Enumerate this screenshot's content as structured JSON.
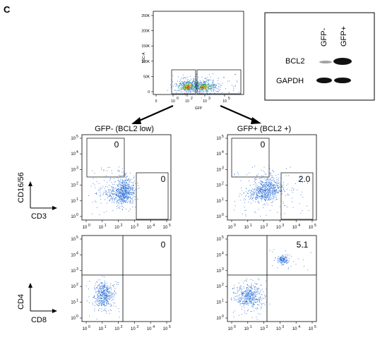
{
  "panel_letter": "C",
  "top_plot": {
    "ylabel": "SSC-A",
    "xlabel": "GFP",
    "yticks": [
      "250K",
      "200K",
      "150K",
      "100K",
      "50K",
      "0"
    ],
    "xticks": [
      "0",
      "10",
      "10",
      "10",
      "10"
    ],
    "xtick_exps": [
      "",
      "0",
      "2",
      "3",
      "5"
    ]
  },
  "western_blot": {
    "lanes": [
      "GFP-",
      "GFP+"
    ],
    "bands": [
      "BCL2",
      "GAPDH"
    ]
  },
  "columns": {
    "left_title": "GFP- (BCL2 low)",
    "right_title": "GFP+ (BCL2 +)"
  },
  "row1_axes": {
    "ylabel": "CD16/56",
    "xlabel": "CD3"
  },
  "row2_axes": {
    "ylabel": "CD4",
    "xlabel": "CD8"
  },
  "tick_base": "10",
  "tick_exps": [
    "0",
    "1",
    "2",
    "3",
    "4",
    "5"
  ],
  "percentages": {
    "r1_left_ul": "0",
    "r1_left_lr": "0",
    "r1_right_ul": "0",
    "r1_right_lr": "2.0",
    "r2_left_ur": "0",
    "r2_right_ur": "5.1"
  },
  "colors": {
    "dot": "#2b6fd6",
    "hot": "#e53b1f",
    "warm": "#f2c81c",
    "green": "#22b14c"
  }
}
